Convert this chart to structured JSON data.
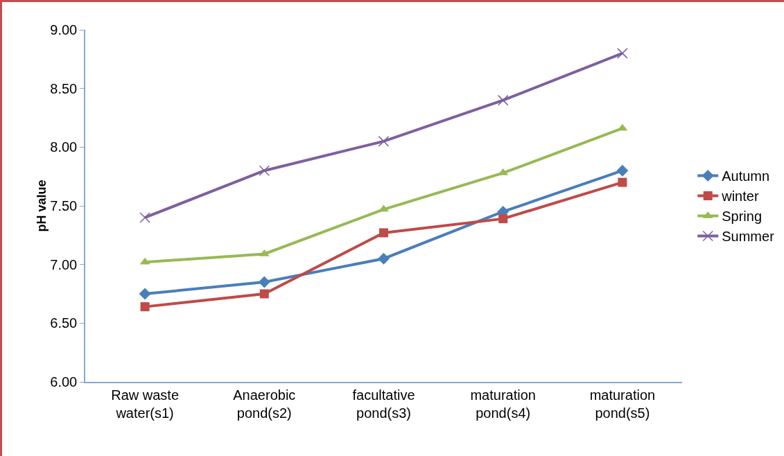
{
  "chart_data": {
    "type": "line",
    "ylabel": "pH value",
    "categories": [
      "Raw waste\nwater(s1)",
      "Anaerobic\npond(s2)",
      "facultative\npond(s3)",
      "maturation\npond(s4)",
      "maturation\npond(s5)"
    ],
    "series": [
      {
        "name": "Autumn",
        "color": "#4a7ebb",
        "marker": "diamond",
        "values": [
          6.75,
          6.85,
          7.05,
          7.45,
          7.8
        ]
      },
      {
        "name": "winter",
        "color": "#be4b48",
        "marker": "square",
        "values": [
          6.64,
          6.75,
          7.27,
          7.39,
          7.7
        ]
      },
      {
        "name": "Spring",
        "color": "#98b954",
        "marker": "triangle",
        "values": [
          7.02,
          7.09,
          7.47,
          7.78,
          8.16
        ]
      },
      {
        "name": "Summer",
        "color": "#7d60a0",
        "marker": "cross",
        "values": [
          7.4,
          7.8,
          8.05,
          8.4,
          8.8
        ]
      }
    ],
    "ylim": [
      6,
      9
    ],
    "yticks": [
      {
        "value": 6,
        "label": "6.00"
      },
      {
        "value": 6.5,
        "label": "6.50"
      },
      {
        "value": 7,
        "label": "7.00"
      },
      {
        "value": 7.5,
        "label": "7.50"
      },
      {
        "value": 8,
        "label": "8.00"
      },
      {
        "value": 8.5,
        "label": "8.50"
      },
      {
        "value": 9,
        "label": "9.00"
      }
    ],
    "grid": false,
    "legend": "right",
    "line_style": "solid"
  }
}
